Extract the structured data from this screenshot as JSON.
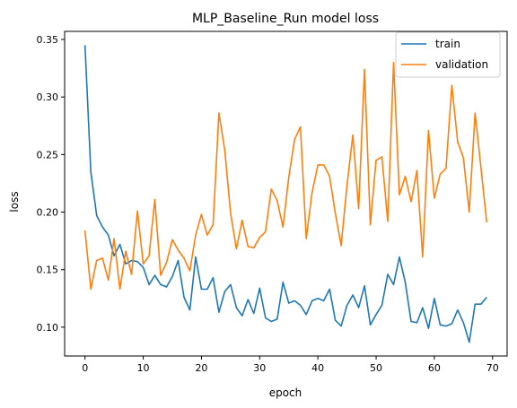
{
  "chart_data": {
    "type": "line",
    "title": "MLP_Baseline_Run model loss",
    "xlabel": "epoch",
    "ylabel": "loss",
    "xlim": [
      -3.5,
      72.5
    ],
    "ylim": [
      0.075,
      0.357
    ],
    "xticks": [
      0,
      10,
      20,
      30,
      40,
      50,
      60,
      70
    ],
    "yticks": [
      0.1,
      0.15,
      0.2,
      0.25,
      0.3,
      0.35
    ],
    "ytick_labels": [
      "0.10",
      "0.15",
      "0.20",
      "0.25",
      "0.30",
      "0.35"
    ],
    "grid": false,
    "legend_position": "upper right",
    "series": [
      {
        "name": "train",
        "color": "#1f77b4",
        "values": [
          0.345,
          0.235,
          0.197,
          0.187,
          0.18,
          0.162,
          0.172,
          0.155,
          0.158,
          0.157,
          0.152,
          0.137,
          0.145,
          0.137,
          0.135,
          0.144,
          0.158,
          0.126,
          0.115,
          0.161,
          0.133,
          0.133,
          0.143,
          0.113,
          0.131,
          0.137,
          0.117,
          0.11,
          0.124,
          0.112,
          0.134,
          0.108,
          0.105,
          0.107,
          0.139,
          0.121,
          0.123,
          0.119,
          0.111,
          0.123,
          0.125,
          0.123,
          0.133,
          0.106,
          0.101,
          0.119,
          0.128,
          0.117,
          0.136,
          0.102,
          0.111,
          0.119,
          0.146,
          0.137,
          0.161,
          0.139,
          0.105,
          0.104,
          0.117,
          0.099,
          0.125,
          0.102,
          0.101,
          0.103,
          0.115,
          0.104,
          0.087,
          0.12,
          0.12,
          0.126
        ]
      },
      {
        "name": "validation",
        "color": "#ff7f0e",
        "values": [
          0.184,
          0.133,
          0.158,
          0.16,
          0.141,
          0.177,
          0.133,
          0.166,
          0.146,
          0.201,
          0.155,
          0.162,
          0.211,
          0.145,
          0.156,
          0.176,
          0.167,
          0.16,
          0.149,
          0.18,
          0.198,
          0.18,
          0.189,
          0.286,
          0.254,
          0.199,
          0.168,
          0.193,
          0.17,
          0.169,
          0.178,
          0.183,
          0.22,
          0.21,
          0.187,
          0.23,
          0.263,
          0.274,
          0.177,
          0.217,
          0.241,
          0.241,
          0.231,
          0.199,
          0.171,
          0.223,
          0.267,
          0.203,
          0.324,
          0.189,
          0.245,
          0.248,
          0.192,
          0.33,
          0.215,
          0.231,
          0.209,
          0.236,
          0.161,
          0.271,
          0.212,
          0.233,
          0.238,
          0.31,
          0.261,
          0.247,
          0.2,
          0.286,
          0.239,
          0.191
        ]
      }
    ]
  }
}
